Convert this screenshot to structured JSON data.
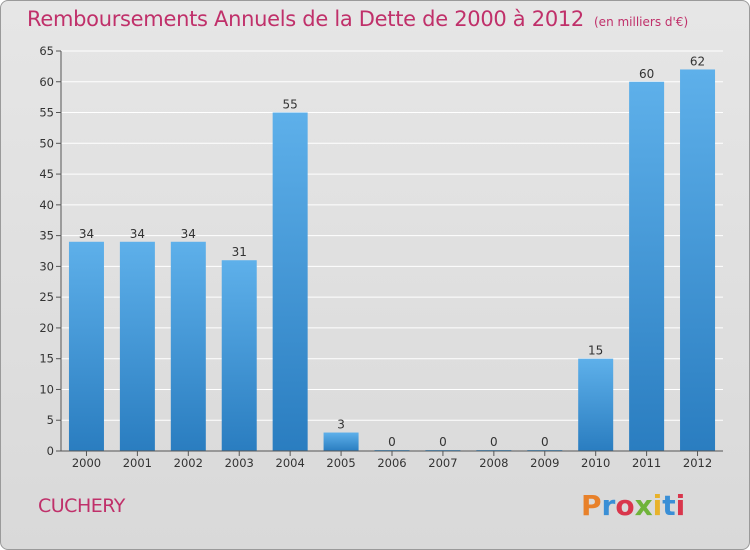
{
  "header": {
    "title": "Remboursements Annuels de la Dette de 2000 à 2012",
    "subtitle": "(en milliers d'€)"
  },
  "footer": {
    "commune": "CUCHERY",
    "logo_text": "Proxiti",
    "logo_colors": [
      "#e8812a",
      "#3a8fd6",
      "#d9364c",
      "#6fb33a",
      "#e8b22a",
      "#3a8fd6",
      "#d9364c"
    ]
  },
  "colors": {
    "bar_top": "#5eb0ea",
    "bar_bottom": "#2a7dc0",
    "grid": "#ffffff",
    "axis_text": "#333333"
  },
  "chart_data": {
    "type": "bar",
    "categories": [
      "2000",
      "2001",
      "2002",
      "2003",
      "2004",
      "2005",
      "2006",
      "2007",
      "2008",
      "2009",
      "2010",
      "2011",
      "2012"
    ],
    "values": [
      34,
      34,
      34,
      31,
      55,
      3,
      0,
      0,
      0,
      0,
      15,
      60,
      62
    ],
    "title": "Remboursements Annuels de la Dette de 2000 à 2012",
    "xlabel": "",
    "ylabel": "",
    "ylim": [
      0,
      65
    ],
    "yticks": [
      0,
      5,
      10,
      15,
      20,
      25,
      30,
      35,
      40,
      45,
      50,
      55,
      60,
      65
    ],
    "grid": true,
    "data_labels": true
  }
}
